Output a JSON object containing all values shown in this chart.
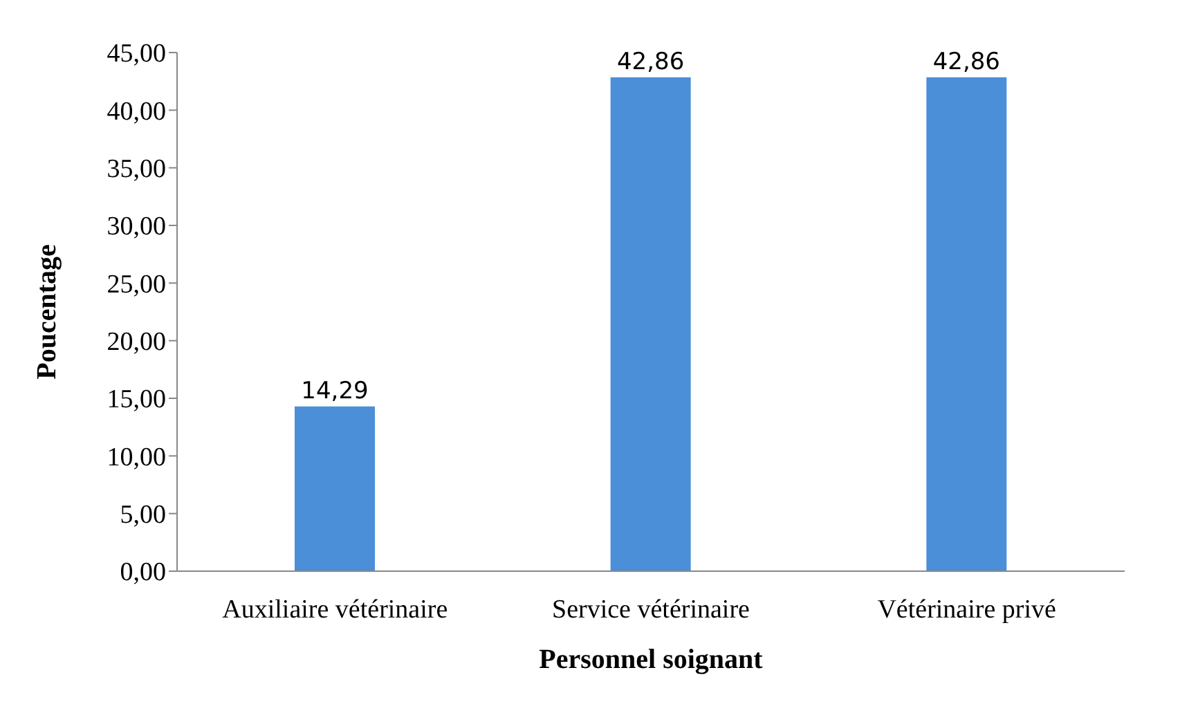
{
  "chart_data": {
    "type": "bar",
    "xlabel": "Personnel soignant",
    "ylabel": "Poucentage",
    "categories": [
      "Auxiliaire vétérinaire",
      "Service vétérinaire",
      "Vétérinaire privé"
    ],
    "values": [
      14.29,
      42.86,
      42.86
    ],
    "color": "#4a8fd8",
    "value_labels": [
      "14,29",
      "42,86",
      "42,86"
    ],
    "ylim": [
      0,
      45
    ],
    "yticks": [
      {
        "value": 0,
        "label": "0,00"
      },
      {
        "value": 5,
        "label": "5,00"
      },
      {
        "value": 10,
        "label": "10,00"
      },
      {
        "value": 15,
        "label": "15,00"
      },
      {
        "value": 20,
        "label": "20,00"
      },
      {
        "value": 25,
        "label": "25,00"
      },
      {
        "value": 30,
        "label": "30,00"
      },
      {
        "value": 35,
        "label": "35,00"
      },
      {
        "value": 40,
        "label": "40,00"
      },
      {
        "value": 45,
        "label": "45,00"
      }
    ],
    "grid": false,
    "legend": false
  }
}
